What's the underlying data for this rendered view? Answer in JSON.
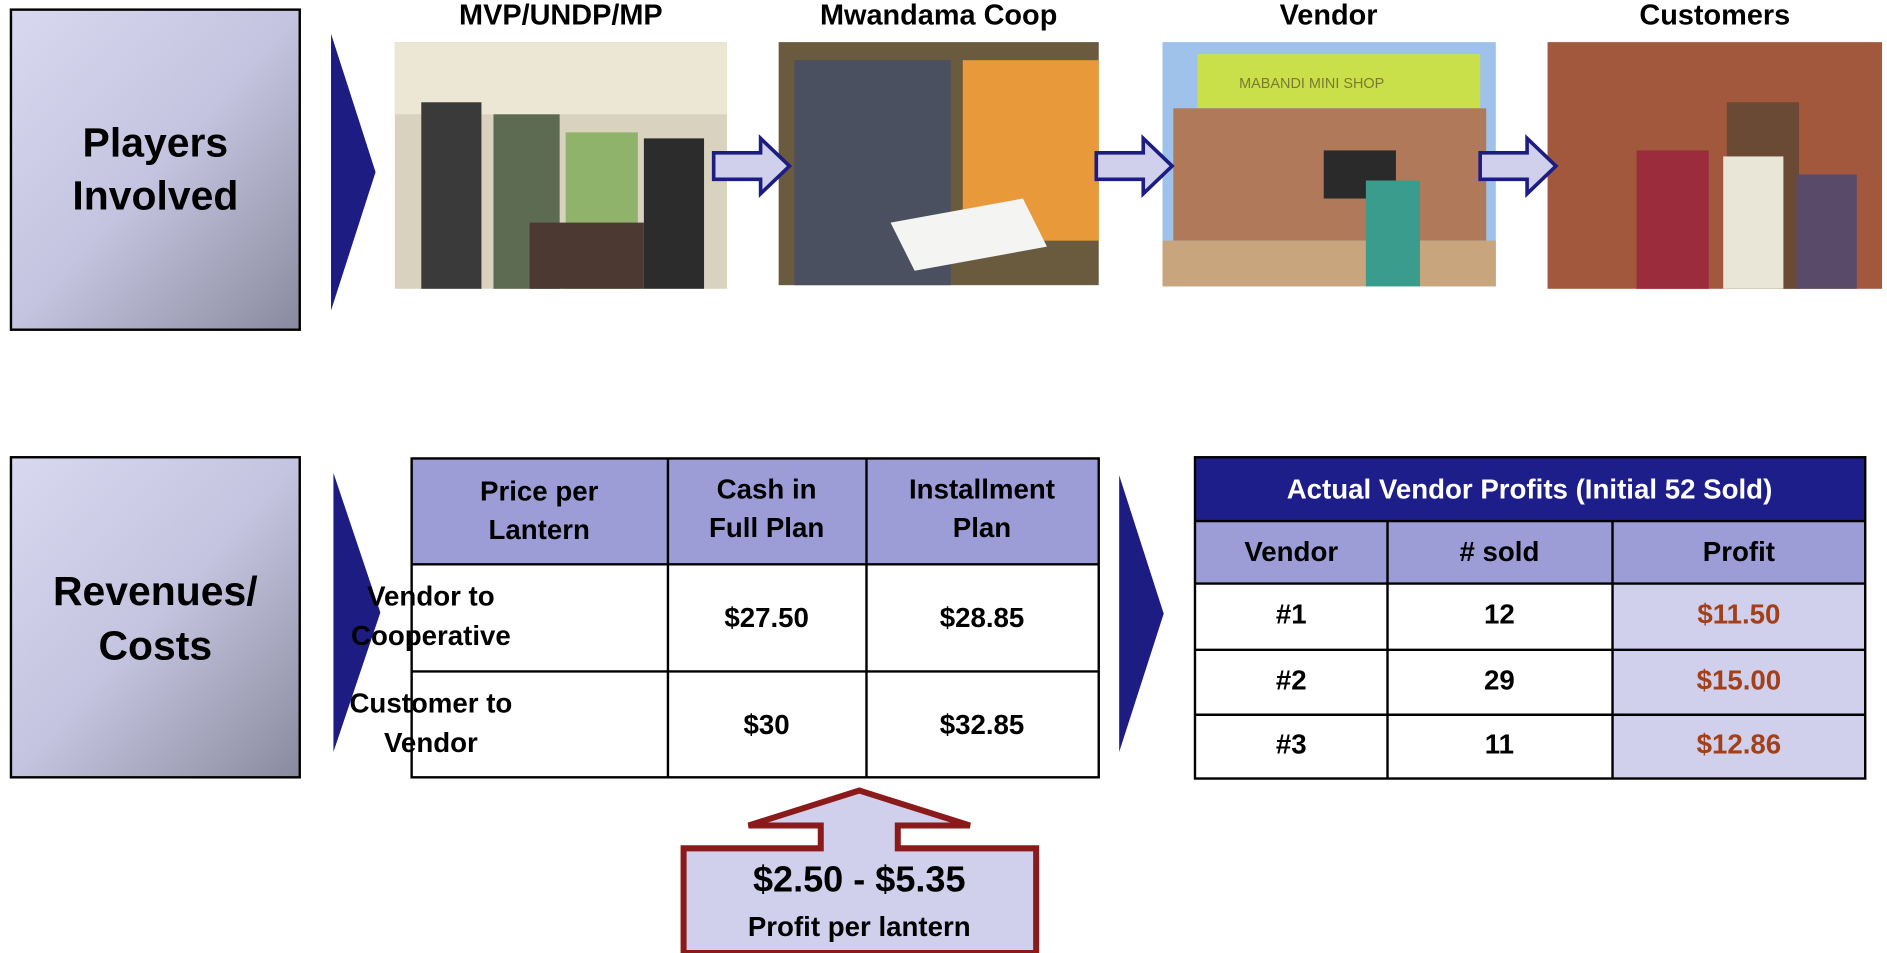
{
  "players_box": {
    "lines": [
      "Players",
      "Involved"
    ]
  },
  "revenues_box": {
    "lines": [
      "Revenues/",
      "Costs"
    ]
  },
  "players": [
    {
      "label": "MVP/UNDP/MP"
    },
    {
      "label": "Mwandama Coop"
    },
    {
      "label": "Vendor"
    },
    {
      "label": "Customers"
    }
  ],
  "shop_sign": "MABANDI MINI SHOP",
  "price_table": {
    "header": [
      [
        "Price per",
        "Lantern"
      ],
      [
        "Cash in",
        "Full Plan"
      ],
      [
        "Installment",
        "Plan"
      ]
    ],
    "rows": [
      [
        [
          "Vendor to",
          "Cooperative"
        ],
        "$27.50",
        "$28.85"
      ],
      [
        [
          "Customer to",
          "Vendor"
        ],
        "$30",
        "$32.85"
      ]
    ]
  },
  "profit_callout": {
    "value": "$2.50 - $5.35",
    "label": "Profit per lantern"
  },
  "vendor_table": {
    "title": "Actual Vendor Profits (Initial 52 Sold)",
    "header": [
      "Vendor",
      "# sold",
      "Profit"
    ],
    "rows": [
      [
        "#1",
        "12",
        "$11.50"
      ],
      [
        "#2",
        "29",
        "$15.00"
      ],
      [
        "#3",
        "11",
        "$12.86"
      ]
    ]
  }
}
